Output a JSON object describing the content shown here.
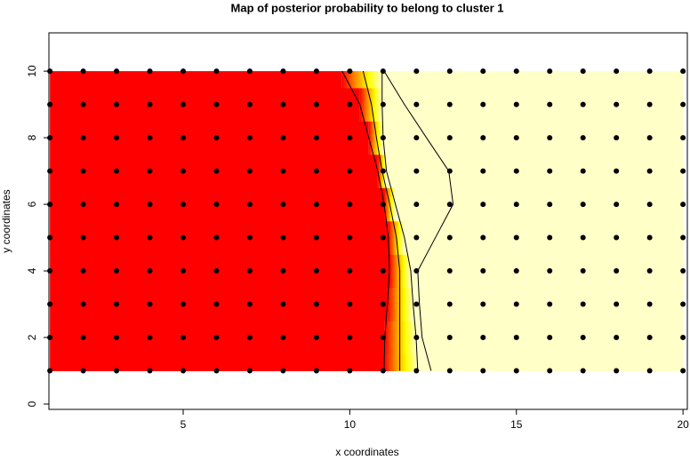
{
  "chart_data": {
    "type": "posterior-map",
    "title": "Map of posterior probability to belong to cluster  1",
    "x_label": "x coordinates",
    "y_label": "y coordinates",
    "xlim": [
      0.97,
      20.13
    ],
    "ylim": [
      -0.16,
      11.15
    ],
    "xticks": [
      5,
      10,
      15,
      20
    ],
    "yticks": [
      0,
      2,
      4,
      6,
      8,
      10
    ],
    "image_xlim": [
      1,
      20
    ],
    "image_ylim": [
      1,
      10
    ],
    "colors": [
      "#ff0000",
      "#ff8c00",
      "#ffff00",
      "#ffffc8"
    ],
    "grid_x": [
      1,
      2,
      3,
      4,
      5,
      6,
      7,
      8,
      9,
      10,
      11,
      12,
      13,
      14,
      15,
      16,
      17,
      18,
      19,
      20
    ],
    "grid_y": [
      1,
      2,
      3,
      4,
      5,
      6,
      7,
      8,
      9,
      10
    ],
    "red_edge": [
      11.03,
      11.05,
      11.13,
      11.19,
      11.16,
      11.03,
      10.84,
      10.57,
      10.3,
      9.77
    ],
    "pale_edge": [
      12.04,
      11.99,
      11.9,
      11.83,
      11.64,
      11.37,
      11.1,
      11.0,
      10.97,
      10.97
    ],
    "contours": [
      {
        "x": [
          11.03,
          11.05,
          11.13,
          11.19,
          11.16,
          11.03,
          10.84,
          10.57,
          10.3,
          9.77
        ]
      },
      {
        "x": [
          11.5,
          11.5,
          11.5,
          11.5,
          11.4,
          11.2,
          10.97,
          10.8,
          10.65,
          10.4
        ]
      },
      {
        "x": [
          12.04,
          11.99,
          11.9,
          11.83,
          11.64,
          11.37,
          11.1,
          11.0,
          10.97,
          10.97
        ]
      },
      {
        "x": [
          12.44,
          12.17,
          12.09,
          12.04,
          12.57,
          13.1,
          12.97,
          12.3,
          11.64,
          11.03
        ]
      }
    ]
  }
}
